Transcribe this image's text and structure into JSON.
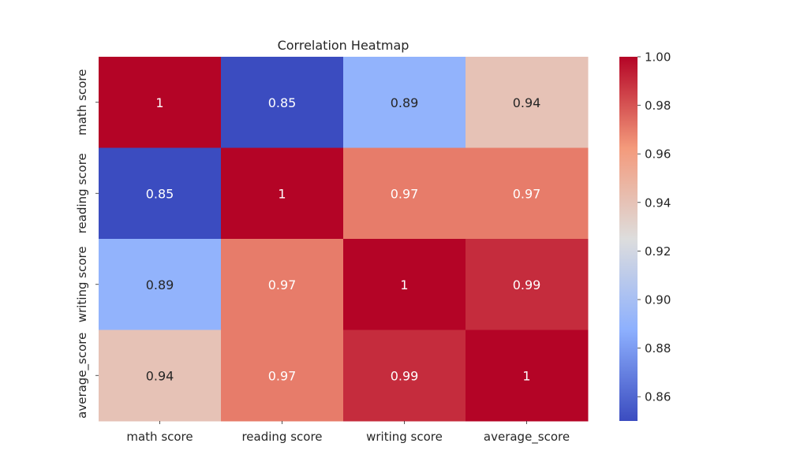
{
  "chart_data": {
    "type": "heatmap",
    "title": "Correlation Heatmap",
    "x_categories": [
      "math score",
      "reading score",
      "writing score",
      "average_score"
    ],
    "y_categories": [
      "math score",
      "reading score",
      "writing score",
      "average_score"
    ],
    "values": [
      [
        1.0,
        0.85,
        0.89,
        0.94
      ],
      [
        0.85,
        1.0,
        0.97,
        0.97
      ],
      [
        0.89,
        0.97,
        1.0,
        0.99
      ],
      [
        0.94,
        0.97,
        0.99,
        1.0
      ]
    ],
    "cell_labels": [
      [
        "1",
        "0.85",
        "0.89",
        "0.94"
      ],
      [
        "0.85",
        "1",
        "0.97",
        "0.97"
      ],
      [
        "0.89",
        "0.97",
        "1",
        "0.99"
      ],
      [
        "0.94",
        "0.97",
        "0.99",
        "1"
      ]
    ],
    "colormap": "coolwarm",
    "colorbar": {
      "range": [
        0.85,
        1.0
      ],
      "ticks": [
        "0.86",
        "0.88",
        "0.90",
        "0.92",
        "0.94",
        "0.96",
        "0.98",
        "1.00"
      ],
      "tick_values": [
        0.86,
        0.88,
        0.9,
        0.92,
        0.94,
        0.96,
        0.98,
        1.0
      ]
    },
    "grid": false,
    "legend": "colorbar-right"
  }
}
